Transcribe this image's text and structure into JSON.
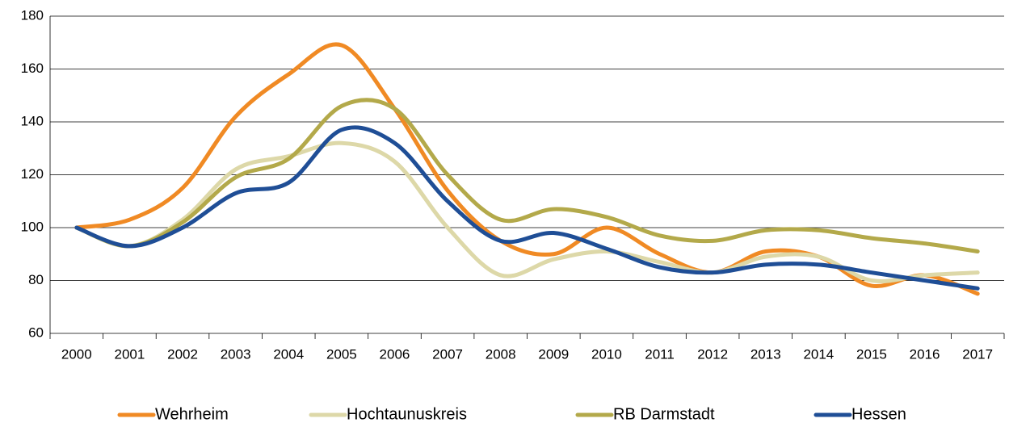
{
  "chart_data": {
    "type": "line",
    "categories": [
      "2000",
      "2001",
      "2002",
      "2003",
      "2004",
      "2005",
      "2006",
      "2007",
      "2008",
      "2009",
      "2010",
      "2011",
      "2012",
      "2013",
      "2014",
      "2015",
      "2016",
      "2017"
    ],
    "series": [
      {
        "name": "Wehrheim",
        "color": "#f08a24",
        "values": [
          100,
          103,
          115,
          142,
          158,
          169,
          145,
          114,
          95,
          90,
          100,
          90,
          83,
          91,
          89,
          78,
          82,
          75
        ]
      },
      {
        "name": "Hochtaunuskreis",
        "color": "#ddd8a8",
        "values": [
          100,
          93,
          103,
          122,
          127,
          132,
          125,
          100,
          82,
          88,
          91,
          87,
          83,
          89,
          89,
          80,
          82,
          83
        ]
      },
      {
        "name": "RB Darmstadt",
        "color": "#b3a94a",
        "values": [
          100,
          93,
          102,
          119,
          126,
          146,
          145,
          120,
          103,
          107,
          104,
          97,
          95,
          99,
          99,
          96,
          94,
          91
        ]
      },
      {
        "name": "Hessen",
        "color": "#1f4e96",
        "values": [
          100,
          93,
          100,
          113,
          117,
          137,
          132,
          110,
          95,
          98,
          92,
          85,
          83,
          86,
          86,
          83,
          80,
          77
        ]
      }
    ],
    "ylim": [
      60,
      180
    ],
    "yticks": [
      60,
      80,
      100,
      120,
      140,
      160,
      180
    ],
    "grid": true,
    "smooth": true,
    "legend": "bottom"
  }
}
